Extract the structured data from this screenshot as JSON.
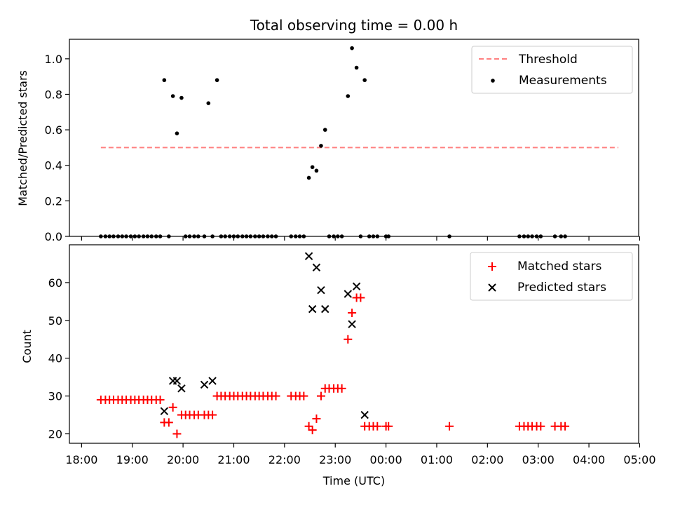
{
  "title": "Total observing time = 0.00 h",
  "xlabel": "Time (UTC)",
  "x_ticks": [
    "18:00",
    "19:00",
    "20:00",
    "21:00",
    "22:00",
    "23:00",
    "00:00",
    "01:00",
    "02:00",
    "03:00",
    "04:00",
    "05:00"
  ],
  "colors": {
    "threshold": "#ff8080",
    "measurement": "#000000",
    "matched": "#ff0000",
    "predicted": "#000000"
  },
  "chart_data": [
    {
      "type": "scatter",
      "ylabel": "Matched/Predicted stars",
      "ylim": [
        0,
        1.11
      ],
      "y_ticks": [
        "0.0",
        "0.2",
        "0.4",
        "0.6",
        "0.8",
        "1.0"
      ],
      "legend_position": "top-right",
      "x_unit": "hours since 18:00 UTC",
      "threshold": {
        "name": "Threshold",
        "value": 0.5,
        "x_range": [
          0.38,
          10.58
        ]
      },
      "series": [
        {
          "name": "Measurements",
          "x": [
            0.38,
            0.47,
            0.55,
            0.63,
            0.72,
            0.8,
            0.88,
            0.97,
            1.05,
            1.13,
            1.22,
            1.3,
            1.38,
            1.47,
            1.55,
            1.63,
            1.72,
            1.8,
            1.88,
            1.97,
            2.05,
            2.13,
            2.22,
            2.3,
            2.42,
            2.5,
            2.58,
            2.67,
            2.75,
            2.83,
            2.92,
            3.0,
            3.08,
            3.17,
            3.25,
            3.33,
            3.42,
            3.5,
            3.58,
            3.67,
            3.75,
            3.83,
            4.13,
            4.22,
            4.3,
            4.38,
            4.48,
            4.55,
            4.63,
            4.72,
            4.8,
            4.88,
            4.97,
            5.05,
            5.13,
            5.25,
            5.33,
            5.42,
            5.5,
            5.58,
            5.67,
            5.75,
            5.83,
            6.0,
            6.05,
            7.25,
            8.63,
            8.72,
            8.8,
            8.88,
            8.97,
            9.05,
            9.33,
            9.45,
            9.53
          ],
          "y": [
            0,
            0,
            0,
            0,
            0,
            0,
            0,
            0,
            0,
            0,
            0,
            0,
            0,
            0,
            0,
            0.88,
            0,
            0.79,
            0.58,
            0.78,
            0,
            0,
            0,
            0,
            0,
            0.75,
            0,
            0.88,
            0,
            0,
            0,
            0,
            0,
            0,
            0,
            0,
            0,
            0,
            0,
            0,
            0,
            0,
            0,
            0,
            0,
            0,
            0.33,
            0.39,
            0.37,
            0.51,
            0.6,
            0,
            0,
            0,
            0,
            0.79,
            1.06,
            0.95,
            0,
            0.88,
            0,
            0,
            0,
            0,
            0,
            0,
            0,
            0,
            0,
            0,
            0,
            0,
            0,
            0,
            0
          ]
        }
      ]
    },
    {
      "type": "scatter",
      "ylabel": "Count",
      "ylim": [
        17.5,
        70
      ],
      "y_ticks": [
        "20",
        "30",
        "40",
        "50",
        "60"
      ],
      "legend_position": "top-right",
      "x_unit": "hours since 18:00 UTC",
      "series": [
        {
          "name": "Matched stars",
          "marker": "plus",
          "x": [
            0.38,
            0.47,
            0.55,
            0.63,
            0.72,
            0.8,
            0.88,
            0.97,
            1.05,
            1.13,
            1.22,
            1.3,
            1.38,
            1.47,
            1.55,
            1.63,
            1.72,
            1.8,
            1.88,
            1.97,
            2.05,
            2.13,
            2.22,
            2.3,
            2.42,
            2.5,
            2.58,
            2.67,
            2.75,
            2.83,
            2.92,
            3.0,
            3.08,
            3.17,
            3.25,
            3.33,
            3.42,
            3.5,
            3.58,
            3.67,
            3.75,
            3.83,
            4.13,
            4.22,
            4.3,
            4.38,
            4.48,
            4.55,
            4.63,
            4.72,
            4.8,
            4.88,
            4.97,
            5.05,
            5.13,
            5.25,
            5.33,
            5.42,
            5.5,
            5.58,
            5.67,
            5.75,
            5.83,
            6.0,
            6.05,
            7.25,
            8.63,
            8.72,
            8.8,
            8.88,
            8.97,
            9.05,
            9.33,
            9.45,
            9.53
          ],
          "y": [
            29,
            29,
            29,
            29,
            29,
            29,
            29,
            29,
            29,
            29,
            29,
            29,
            29,
            29,
            29,
            23,
            23,
            27,
            20,
            25,
            25,
            25,
            25,
            25,
            25,
            25,
            25,
            30,
            30,
            30,
            30,
            30,
            30,
            30,
            30,
            30,
            30,
            30,
            30,
            30,
            30,
            30,
            30,
            30,
            30,
            30,
            22,
            21,
            24,
            30,
            32,
            32,
            32,
            32,
            32,
            45,
            52,
            56,
            56,
            22,
            22,
            22,
            22,
            22,
            22,
            22,
            22,
            22,
            22,
            22,
            22,
            22,
            22,
            22,
            22
          ]
        },
        {
          "name": "Predicted stars",
          "marker": "x",
          "x": [
            1.63,
            1.8,
            1.88,
            1.97,
            2.42,
            2.58,
            4.48,
            4.55,
            4.63,
            4.72,
            4.8,
            5.25,
            5.33,
            5.42,
            5.58
          ],
          "y": [
            26,
            34,
            34,
            32,
            33,
            34,
            67,
            53,
            64,
            58,
            53,
            57,
            49,
            59,
            25
          ]
        }
      ]
    }
  ]
}
